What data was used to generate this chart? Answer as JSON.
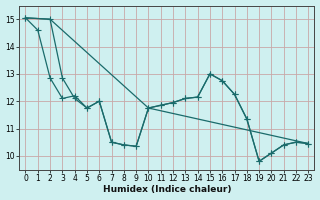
{
  "xlabel": "Humidex (Indice chaleur)",
  "background_color": "#cff0f0",
  "grid_color": "#c8a8a8",
  "line_color": "#1a6b6b",
  "xlim": [
    -0.5,
    23.5
  ],
  "ylim": [
    9.5,
    15.5
  ],
  "yticks": [
    10,
    11,
    12,
    13,
    14,
    15
  ],
  "xticks": [
    0,
    1,
    2,
    3,
    4,
    5,
    6,
    7,
    8,
    9,
    10,
    11,
    12,
    13,
    14,
    15,
    16,
    17,
    18,
    19,
    20,
    21,
    22,
    23
  ],
  "line1_x": [
    0,
    1,
    2,
    3,
    4,
    5,
    6,
    7,
    8,
    9,
    10,
    11,
    12,
    13,
    14,
    15,
    16,
    17,
    18,
    19,
    20,
    21,
    22,
    23
  ],
  "line1_y": [
    15.05,
    14.6,
    12.85,
    12.1,
    12.2,
    11.75,
    12.0,
    10.5,
    10.4,
    10.35,
    11.75,
    11.85,
    11.95,
    12.1,
    12.15,
    13.0,
    12.75,
    12.25,
    11.35,
    9.8,
    10.1,
    10.4,
    10.5,
    10.45
  ],
  "line2_x": [
    0,
    2,
    3,
    4,
    5,
    6,
    7,
    8,
    9,
    10,
    11,
    12,
    13,
    14,
    15,
    16,
    17,
    18,
    19,
    20,
    21,
    22,
    23
  ],
  "line2_y": [
    15.05,
    15.0,
    12.85,
    12.1,
    11.75,
    12.0,
    10.5,
    10.4,
    10.35,
    11.75,
    11.85,
    11.95,
    12.1,
    12.15,
    13.0,
    12.75,
    12.25,
    11.35,
    9.8,
    10.1,
    10.4,
    10.5,
    10.45
  ],
  "line3_x": [
    0,
    2,
    10,
    23
  ],
  "line3_y": [
    15.05,
    15.0,
    11.75,
    10.45
  ]
}
